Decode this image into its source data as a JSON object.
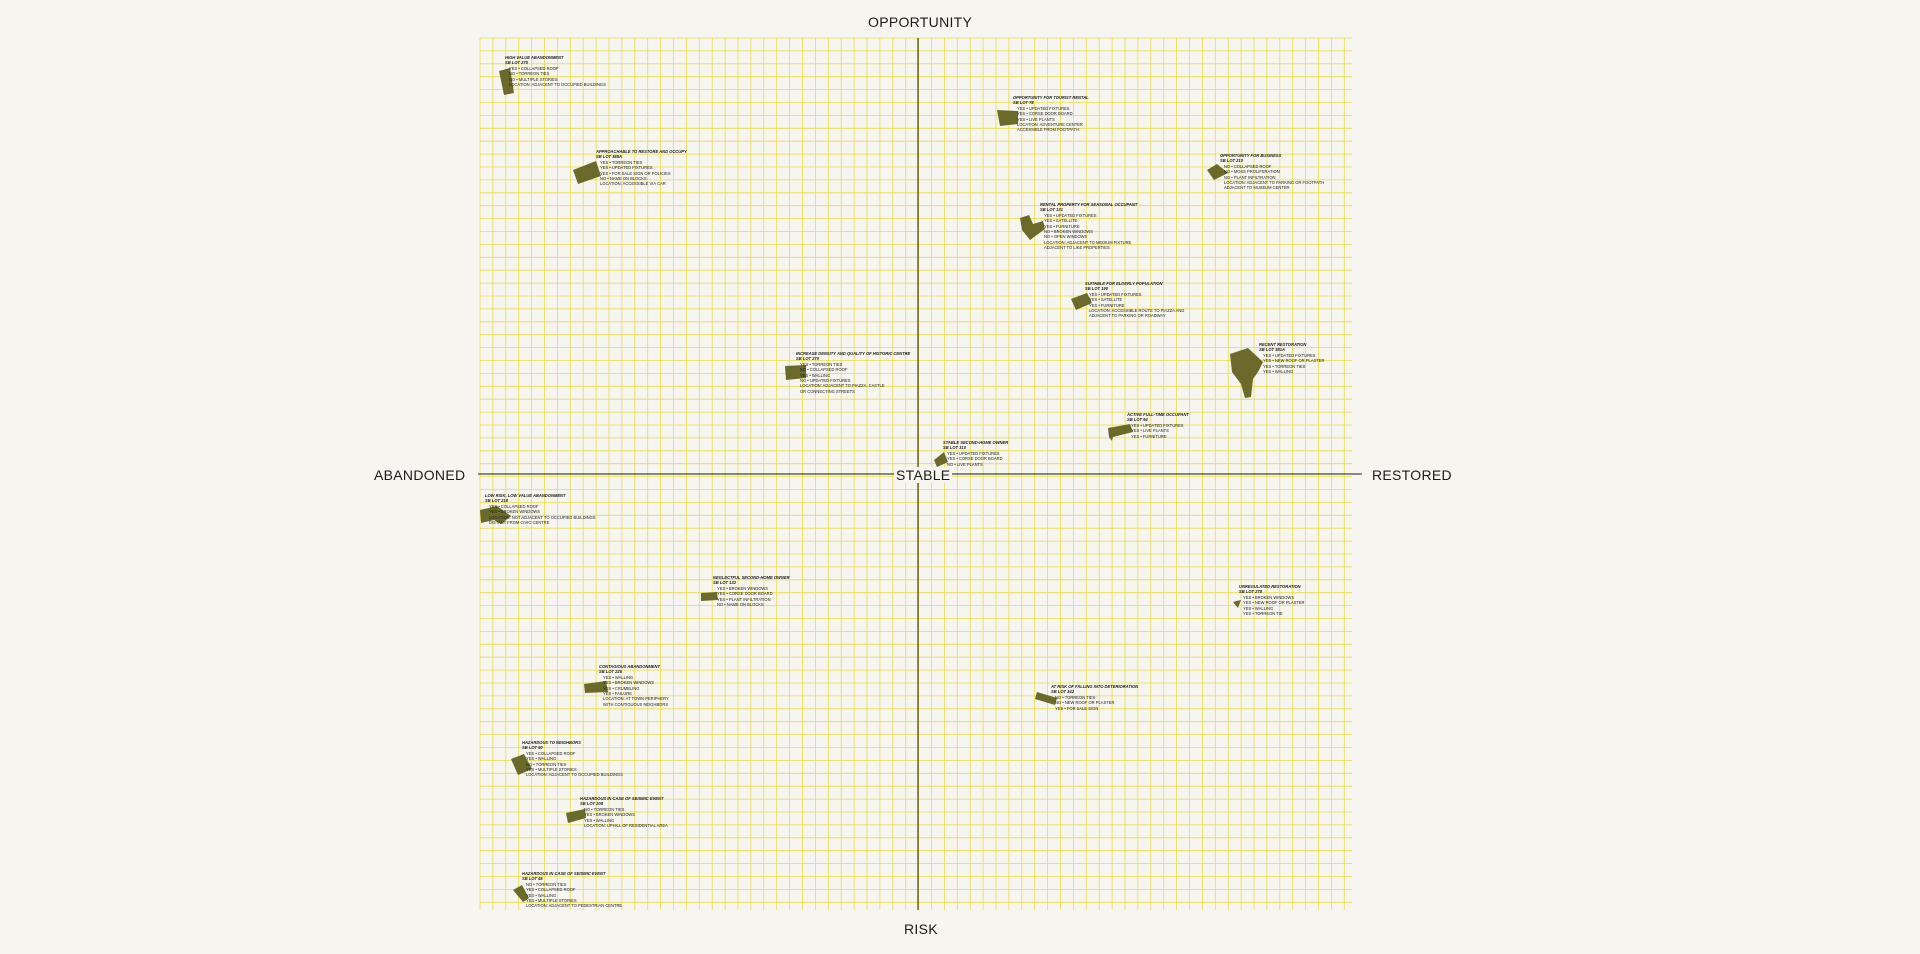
{
  "axes": {
    "top": "OPPORTUNITY",
    "bottom": "RISK",
    "left": "ABANDONED",
    "right": "RESTORED",
    "center": "STABLE"
  },
  "colors": {
    "background": "#f6f5f0",
    "grid": "#e9dc4a",
    "axis": "#1b1b1b",
    "parcel": "#6b6a2b",
    "text": "#1b1b1b"
  },
  "notes": [
    {
      "id": "n1",
      "title": "HIGH VALUE ABANDONMENT",
      "lot": "SB LOT 270",
      "lines": [
        "YES • COLLAPSED ROOF",
        "NO • TORREON TIES",
        "NO • MULTIPLE STORIES",
        "LOCATION: ADJACENT TO OCCUPIED BUILDINGS"
      ]
    },
    {
      "id": "n2",
      "title": "APPROACHABLE TO RESTORE AND OCCUPY",
      "lot": "SB LOT 388A",
      "lines": [
        "YES • TORREON TIES",
        "YES • UPDATED FIXTURES",
        "YES • FOR SALE SIGN OR POLICIES",
        "NO • NAME ON BLOCKS",
        "LOCATION: ACCESSIBLE VIA CAR"
      ]
    },
    {
      "id": "n3",
      "title": "OPPORTUNITY FOR TOURIST RENTAL",
      "lot": "SB LOT 78",
      "lines": [
        "YES • UPDATED FIXTURES",
        "YES • CORSE DOOR BOARD",
        "YES • LIVE PLANTS",
        "LOCATION: ADVENTURE CENTER",
        "ACCESSIBLE FROM FOOTPATH"
      ]
    },
    {
      "id": "n4",
      "title": "OPPORTUNITY FOR BUSINESS",
      "lot": "SB LOT 210",
      "lines": [
        "NO • COLLAPSED ROOF",
        "NO • MOSS PROLIFERATION",
        "NO • PLANT INFILTRATION",
        "LOCATION: ADJACENT TO PARKING OR FOOTPATH",
        "ADJACENT TO MUSEUM CENTER"
      ]
    },
    {
      "id": "n5",
      "title": "RENTAL PROPERTY FOR SEASONAL OCCUPANT",
      "lot": "SB LOT 131",
      "lines": [
        "YES • UPDATED FIXTURES",
        "YES • SATELLITE",
        "YES • FURNITURE",
        "NO • BROKEN WINDOWS",
        "NO • OPEN WINDOWS",
        "LOCATION: ADJACENT TO MEDIUM FIXTURE",
        "ADJACENT TO LIKE PROPERTIES"
      ]
    },
    {
      "id": "n6",
      "title": "SUITABLE FOR ELDERLY POPULATION",
      "lot": "SB LOT 190",
      "lines": [
        "YES • UPDATED FIXTURES",
        "YES • SATELLITE",
        "YES • FURNITURE",
        "LOCATION: ACCESSIBLE ROUTE TO PIAZZA AND",
        "ADJACENT TO PARKING OR ROADWAY"
      ]
    },
    {
      "id": "n7",
      "title": "INCREASE DENSITY AND QUALITY OF HISTORIC CENTRE",
      "lot": "SB LOT 270",
      "lines": [
        "YES • TORREON TIES",
        "NO • COLLAPSED ROOF",
        "YES • WALLING",
        "NO • UPDATED FIXTURES",
        "LOCATION: ADJACENT TO PIAZZA, CASTLE",
        "OR CONNECTING STREETS"
      ]
    },
    {
      "id": "n8",
      "title": "RECENT RESTORATION",
      "lot": "SB LOT 381A",
      "lines": [
        "YES • UPDATED FIXTURES",
        "YES • NEW ROOF OR PLASTER",
        "YES • TORREON TIES",
        "YES • WALLING"
      ]
    },
    {
      "id": "n9",
      "title": "ACTIVE FULL-TIME OCCUPANT",
      "lot": "SB LOT 94",
      "lines": [
        "YES • UPDATED FIXTURES",
        "YES • LIVE PLANTS",
        "YES • FURNITURE"
      ]
    },
    {
      "id": "n10",
      "title": "STABLE SECOND-HOME OWNER",
      "lot": "SB LOT 310",
      "lines": [
        "YES • UPDATED FIXTURES",
        "YES • CORSE DOOR BOARD",
        "NO • LIVE PLANTS"
      ]
    },
    {
      "id": "n11",
      "title": "LOW RISK, LOW VALUE ABANDONMENT",
      "lot": "SB LOT 218",
      "lines": [
        "YES • COLLAPSED ROOF",
        "YES • BROKEN WINDOWS",
        "LOCATION: NOT ADJACENT TO OCCUPIED BUILDINGS",
        "DISTANT FROM CIVIC CENTRE"
      ]
    },
    {
      "id": "n12",
      "title": "NEGLECTFUL SECOND-HOME OWNER",
      "lot": "SB LOT 132",
      "lines": [
        "YES • BROKEN WINDOWS",
        "YES • CORSE DOOR BOARD",
        "YES • PLANT INFILTRATION",
        "NO • NAME ON BLOCKS"
      ]
    },
    {
      "id": "n13",
      "title": "UNREGULATED RESTORATION",
      "lot": "SB LOT 278",
      "lines": [
        "YES • BROKEN WINDOWS",
        "YES • NEW ROOF OR PLASTER",
        "YES • WALLING",
        "YES • TORREON TIE"
      ]
    },
    {
      "id": "n14",
      "title": "CONTAGIOUS ABANDONMENT",
      "lot": "SB LOT 225",
      "lines": [
        "YES • WALLING",
        "YES • BROKEN WINDOWS",
        "YES • CRUMBLING",
        "YES • FAILURE",
        "LOCATION: AT TOWN PERIPHERY",
        "WITH CONTIGUOUS NEIGHBORS"
      ]
    },
    {
      "id": "n15",
      "title": "AT RISK OF FALLING INTO DETERIORATION",
      "lot": "SB LOT 342",
      "lines": [
        "NO • TORREON TIES",
        "NO • NEW ROOF OR PLASTER",
        "YES • FOR SALE SIGN"
      ]
    },
    {
      "id": "n16",
      "title": "HAZARDOUS TO NEIGHBORS",
      "lot": "SB LOT 90",
      "lines": [
        "YES • COLLAPSED ROOF",
        "YES • WALLING",
        "NO • TORREON TIES",
        "YES • MULTIPLE STORIES",
        "LOCATION: ADJACENT TO OCCUPIED BUILDINGS"
      ]
    },
    {
      "id": "n17",
      "title": "HAZARDOUS IN CASE OF SEISMIC EVENT",
      "lot": "SB LOT 208",
      "lines": [
        "NO • TORREON TIES",
        "YES • BROKEN WINDOWS",
        "YES • WALLING",
        "LOCATION: UPHILL OF RESIDENTIAL AREA"
      ]
    },
    {
      "id": "n18",
      "title": "HAZARDOUS IN CASE OF SEISMIC EVENT",
      "lot": "SB LOT 45",
      "lines": [
        "NO • TORREON TIES",
        "YES • COLLAPSED ROOF",
        "YES • WALLING",
        "YES • MULTIPLE STORIES",
        "LOCATION: ADJACENT TO PEDESTRIAN CENTRE"
      ]
    }
  ]
}
